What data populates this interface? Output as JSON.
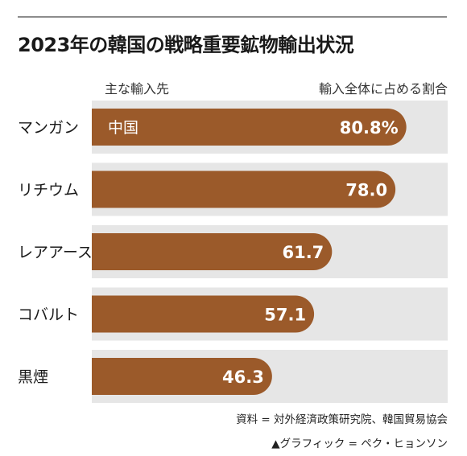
{
  "title": "2023年の韓国の戦略重要鉱物輸出状況",
  "headers": {
    "left": "主な輸入先",
    "right": "輸入全体に占める割合"
  },
  "chart_data": {
    "type": "bar",
    "orientation": "horizontal",
    "categories": [
      "マンガン",
      "リチウム",
      "レアアース",
      "コバルト",
      "黒煙"
    ],
    "values": [
      80.8,
      78.0,
      61.7,
      57.1,
      46.3
    ],
    "value_labels": [
      "80.8%",
      "78.0",
      "61.7",
      "57.1",
      "46.3"
    ],
    "bar_annotations": [
      "中国",
      "",
      "",
      "",
      ""
    ],
    "xlim": [
      0,
      100
    ],
    "unit": "%",
    "grid": false
  },
  "source": "資料 = 対外経済政策研究院、韓国貿易協会",
  "credit": "▲グラフィック = ペク・ヒョンソン",
  "colors": {
    "bar": "#9b5a2a",
    "track": "#e6e6e6",
    "value_text": "#ffffff",
    "title": "#1a1a1a"
  }
}
